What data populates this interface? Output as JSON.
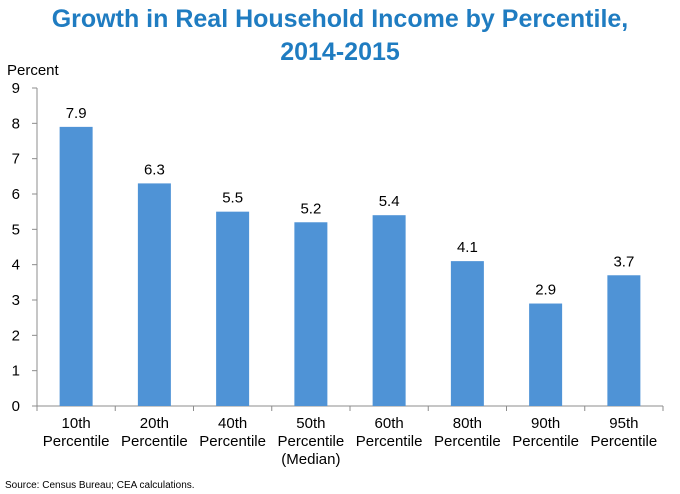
{
  "colors": {
    "title": "#1F7CC1",
    "bar": "#4F93D6",
    "axis": "#8C8C8C",
    "text": "#000000"
  },
  "chart_data": {
    "type": "bar",
    "title": "Growth in Real Household Income by Percentile,",
    "title_line2": "2014-2015",
    "ylabel": "Percent",
    "xlabel": "",
    "ylim": [
      0,
      9
    ],
    "yticks": [
      "0",
      "1",
      "2",
      "3",
      "4",
      "5",
      "6",
      "7",
      "8",
      "9"
    ],
    "categories": [
      [
        "10th",
        "Percentile"
      ],
      [
        "20th",
        "Percentile"
      ],
      [
        "40th",
        "Percentile"
      ],
      [
        "50th",
        "Percentile",
        "(Median)"
      ],
      [
        "60th",
        "Percentile"
      ],
      [
        "80th",
        "Percentile"
      ],
      [
        "90th",
        "Percentile"
      ],
      [
        "95th",
        "Percentile"
      ]
    ],
    "values": [
      7.9,
      6.3,
      5.5,
      5.2,
      5.4,
      4.1,
      2.9,
      3.7
    ],
    "value_labels": [
      "7.9",
      "6.3",
      "5.5",
      "5.2",
      "5.4",
      "4.1",
      "2.9",
      "3.7"
    ],
    "grid": false,
    "legend": "none"
  },
  "source": "Source: Census Bureau; CEA calculations."
}
